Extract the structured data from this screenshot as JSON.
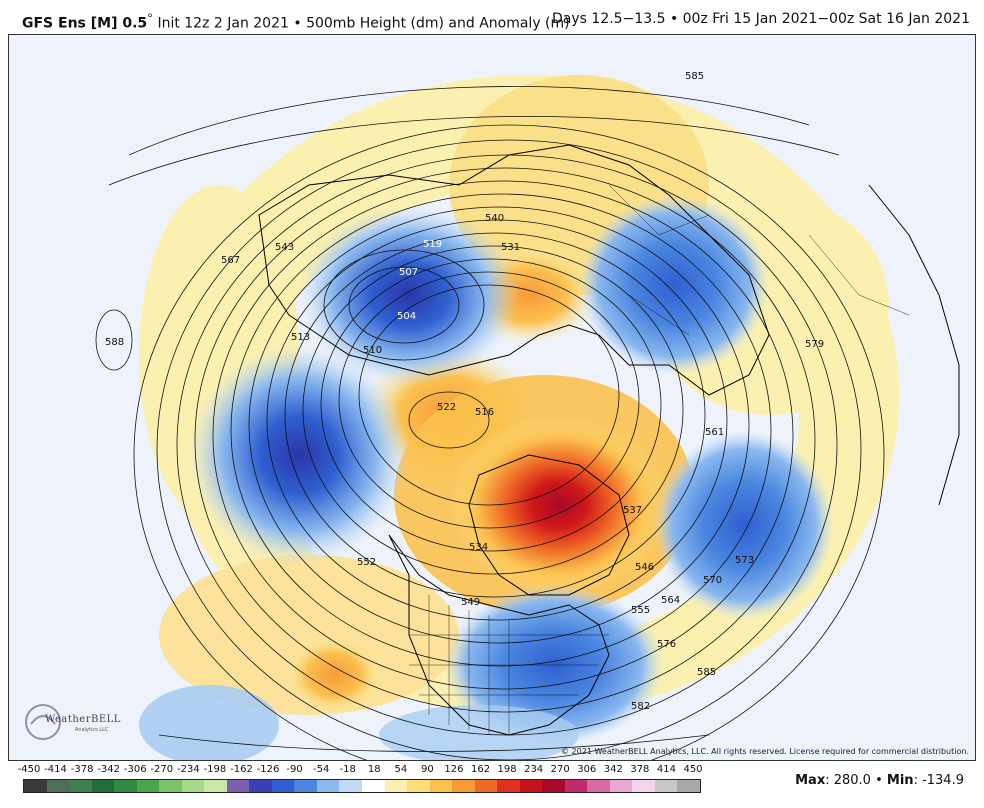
{
  "header": {
    "model": "GFS Ens [M] 0.5",
    "degree": "°",
    "init": "Init 12z 2 Jan 2021",
    "bullet": "•",
    "field": "500mb Height (dm) and Anomaly (m)",
    "valid": "Days 12.5−13.5 • 00z Fri 15 Jan 2021−00z Sat 16 Jan 2021"
  },
  "logo": {
    "text": "WeatherBELL",
    "sub": "Analytics LLC"
  },
  "copyright": "© 2021 WeatherBELL Analytics, LLC. All rights reserved. License required for commercial distribution.",
  "contour_labels": [
    "519",
    "507",
    "504",
    "510",
    "513",
    "522",
    "516",
    "531",
    "540",
    "543",
    "537",
    "546",
    "555",
    "564",
    "570",
    "573",
    "576",
    "585",
    "561",
    "579",
    "567",
    "588",
    "552",
    "534",
    "549",
    "582",
    "585"
  ],
  "legend": {
    "ticks": [
      "-450",
      "-414",
      "-378",
      "-342",
      "-306",
      "-270",
      "-234",
      "-198",
      "-162",
      "-126",
      "-90",
      "-54",
      "-18",
      "18",
      "54",
      "90",
      "126",
      "162",
      "198",
      "234",
      "270",
      "306",
      "342",
      "378",
      "414",
      "450"
    ],
    "colors": [
      "#3a3a3a",
      "#4e6d5a",
      "#3f7f52",
      "#1f6e3a",
      "#2e8b3f",
      "#4aa64a",
      "#7cc26a",
      "#a6d88a",
      "#c9e8a8",
      "#7b5fb0",
      "#3a3fb8",
      "#2f5fd0",
      "#4a86e0",
      "#8ab8ef",
      "#c0daf6",
      "#ffffff",
      "#fbf0b0",
      "#fddf7a",
      "#fbc14f",
      "#f79a36",
      "#ef6a26",
      "#e03020",
      "#c8101a",
      "#a8082a",
      "#c02c6a",
      "#d96aa6",
      "#e8a8cf",
      "#f2d5ea",
      "#c8c8c8",
      "#a8a8a8"
    ]
  },
  "stats": {
    "max_label": "Max",
    "max_value": "280.0",
    "min_label": "Min",
    "min_value": "-134.9",
    "sep": "•"
  }
}
